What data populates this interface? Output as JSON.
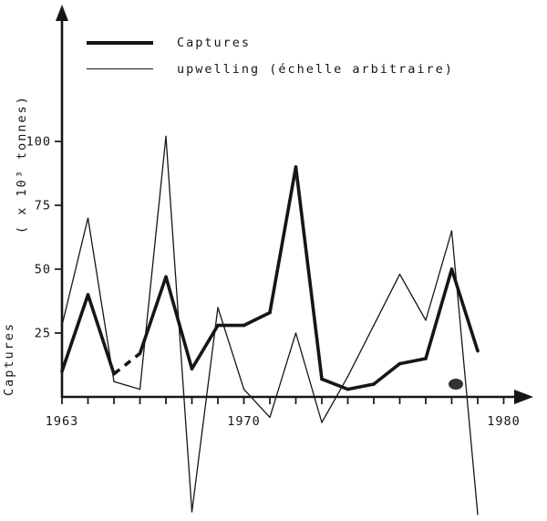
{
  "figure": {
    "legend": [
      {
        "label": "Captures",
        "style": "thick"
      },
      {
        "label": "upwelling (échelle arbitraire)",
        "style": "thin"
      }
    ],
    "y_axis_label_upper": "( x 10³ tonnes)",
    "y_axis_label_lower": "Captures"
  },
  "chart_data": {
    "type": "line",
    "title": "",
    "xlabel": "",
    "ylabel": "Captures ( x 10³ tonnes)",
    "legend_entries": [
      "Captures",
      "upwelling (échelle arbitraire)"
    ],
    "legend_position": "top-left",
    "grid": false,
    "xlim": [
      1963,
      1980
    ],
    "ylim_visible": [
      0,
      110
    ],
    "x": [
      1963,
      1964,
      1965,
      1966,
      1967,
      1968,
      1969,
      1970,
      1971,
      1972,
      1973,
      1974,
      1975,
      1976,
      1977,
      1978,
      1979
    ],
    "series": [
      {
        "name": "Captures",
        "stroke_width": 3.6,
        "dashed_segments": [
          [
            2,
            3
          ]
        ],
        "values": [
          10,
          40,
          9,
          17,
          47,
          11,
          28,
          28,
          33,
          90,
          7,
          3,
          5,
          13,
          15,
          50,
          18
        ]
      },
      {
        "name": "upwelling (échelle arbitraire)",
        "stroke_width": 1.3,
        "dashed_segments": [],
        "values": [
          28,
          70,
          6,
          3,
          102,
          -45,
          35,
          3,
          -8,
          25,
          -10,
          8,
          28,
          48,
          30,
          65,
          -46
        ]
      }
    ],
    "x_ticks": [
      1963,
      1964,
      1965,
      1966,
      1967,
      1968,
      1969,
      1970,
      1971,
      1972,
      1973,
      1974,
      1975,
      1976,
      1977,
      1978,
      1979,
      1980
    ],
    "x_tick_labels": [
      {
        "value": 1963,
        "label": "1963"
      },
      {
        "value": 1970,
        "label": "1970"
      },
      {
        "value": 1980,
        "label": "1980"
      }
    ],
    "y_ticks": [
      25,
      50,
      75,
      100
    ],
    "note": "thin upwelling line runs off-scale below the x-axis near 1968 and 1979"
  }
}
